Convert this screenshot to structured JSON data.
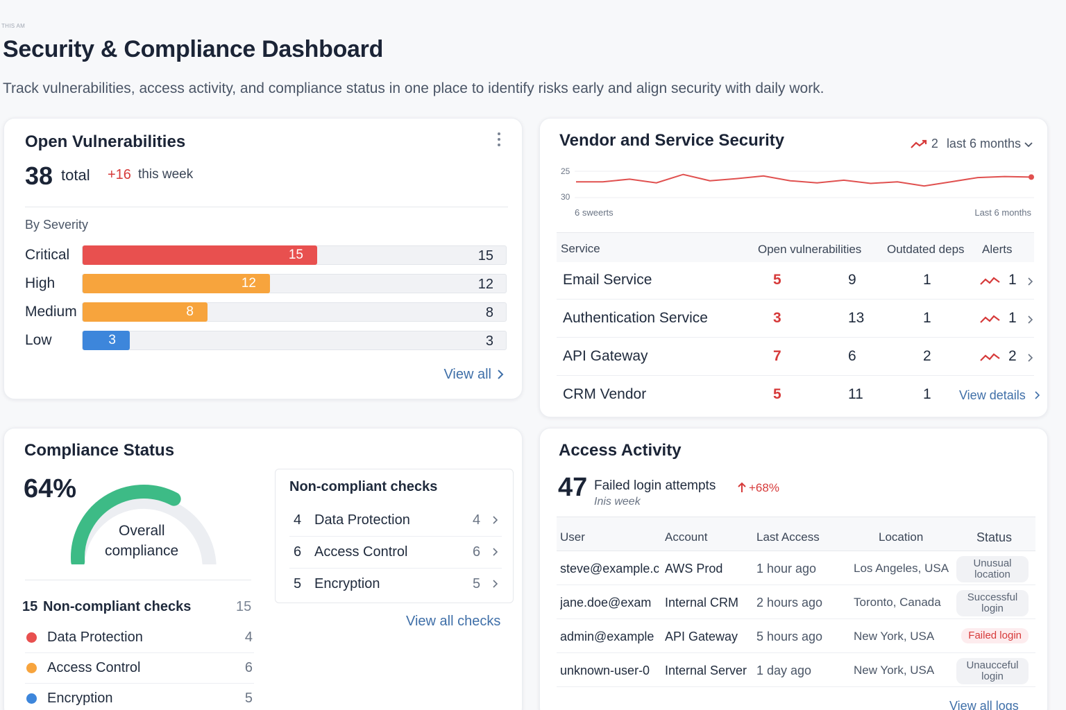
{
  "header": {
    "crumb": "THIS AM",
    "title": "Security & Compliance Dashboard",
    "subtitle": "Track vulnerabilities, access activity, and compliance status in one place to identify risks early and align security with daily work."
  },
  "vulnerabilities": {
    "title": "Open Vulnerabilities",
    "total": "38",
    "total_label": "total",
    "delta": "+16",
    "delta_label": "this week",
    "section_label": "By Severity",
    "max": 15,
    "severities": [
      {
        "label": "Critical",
        "value": 15,
        "value_text": "15",
        "color": "#e8504f"
      },
      {
        "label": "High",
        "value": 12,
        "value_text": "12",
        "color": "#f7a43d"
      },
      {
        "label": "Medium",
        "value": 8,
        "value_text": "8",
        "color": "#f7a43d"
      },
      {
        "label": "Low",
        "value": 3,
        "value_text": "3",
        "color": "#3d86db"
      }
    ],
    "view_all": "View all"
  },
  "vendor": {
    "title": "Vendor and Service Security",
    "range_value": "2",
    "range_label": "last 6 months",
    "chart_data": {
      "type": "line",
      "y_tick_labels": [
        "25",
        "30"
      ],
      "x_left_label": "6 sweerts",
      "x_right_label": "Last 6 months",
      "series": [
        {
          "values": [
            27,
            27,
            26.5,
            27.2,
            25.6,
            26.8,
            26.4,
            25.9,
            26.8,
            27.2,
            26.7,
            27.3,
            27.0,
            27.8,
            27.0,
            26.2,
            26.0,
            26.1
          ]
        }
      ],
      "color": "#e0504f"
    },
    "columns": [
      "Service",
      "Open vulnerabilities",
      "Outdated deps",
      "Alerts"
    ],
    "rows": [
      {
        "service": "Email Service",
        "vulns": "5",
        "deps": "9",
        "outdated": "1",
        "alerts": "1"
      },
      {
        "service": "Authentication Service",
        "vulns": "3",
        "deps": "13",
        "outdated": "1",
        "alerts": "1"
      },
      {
        "service": "API Gateway",
        "vulns": "7",
        "deps": "6",
        "outdated": "2",
        "alerts": "2"
      },
      {
        "service": "CRM Vendor",
        "vulns": "5",
        "deps": "11",
        "outdated": "1",
        "alerts": ""
      }
    ],
    "view_details": "View details"
  },
  "compliance": {
    "title": "Compliance Status",
    "percent_text": "64%",
    "percent": 0.64,
    "gauge_label_1": "Overall",
    "gauge_label_2": "compliance",
    "nc_box_title": "Non-compliant checks",
    "nc_items": [
      {
        "num": "4",
        "label": "Data Protection",
        "count": "4"
      },
      {
        "num": "6",
        "label": "Access Control",
        "count": "6"
      },
      {
        "num": "5",
        "label": "Encryption",
        "count": "5"
      }
    ],
    "view_all_checks": "View all checks",
    "list_count": "15",
    "list_title": "Non-compliant checks",
    "list_total": "15",
    "list_items": [
      {
        "label": "Data Protection",
        "count": "4",
        "color": "#e8504f"
      },
      {
        "label": "Access Control",
        "count": "6",
        "color": "#f7a43d"
      },
      {
        "label": "Encryption",
        "count": "5",
        "color": "#3d86db"
      }
    ]
  },
  "access": {
    "title": "Access Activity",
    "count": "47",
    "count_label": "Failed login attempts",
    "delta": "+68%",
    "period": "Inis week",
    "columns": [
      "User",
      "Account",
      "Last Access",
      "Location",
      "Status"
    ],
    "rows": [
      {
        "user": "steve@example.c",
        "account": "AWS Prod",
        "last": "1 hour ago",
        "location": "Los Angeles, USA",
        "status": "Unusual location",
        "tone": "neutral"
      },
      {
        "user": "jane.doe@exam",
        "account": "Internal CRM",
        "last": "2 hours ago",
        "location": "Toronto, Canada",
        "status": "Successful login",
        "tone": "neutral"
      },
      {
        "user": "admin@example",
        "account": "API Gateway",
        "last": "5 hours ago",
        "location": "New York, USA",
        "status": "Failed login",
        "tone": "red"
      },
      {
        "user": "unknown-user-0",
        "account": "Internal Server",
        "last": "1 day ago",
        "location": "New York, USA",
        "status": "Unaucceful login",
        "tone": "neutral"
      }
    ],
    "view_all_logs": "View all logs"
  }
}
